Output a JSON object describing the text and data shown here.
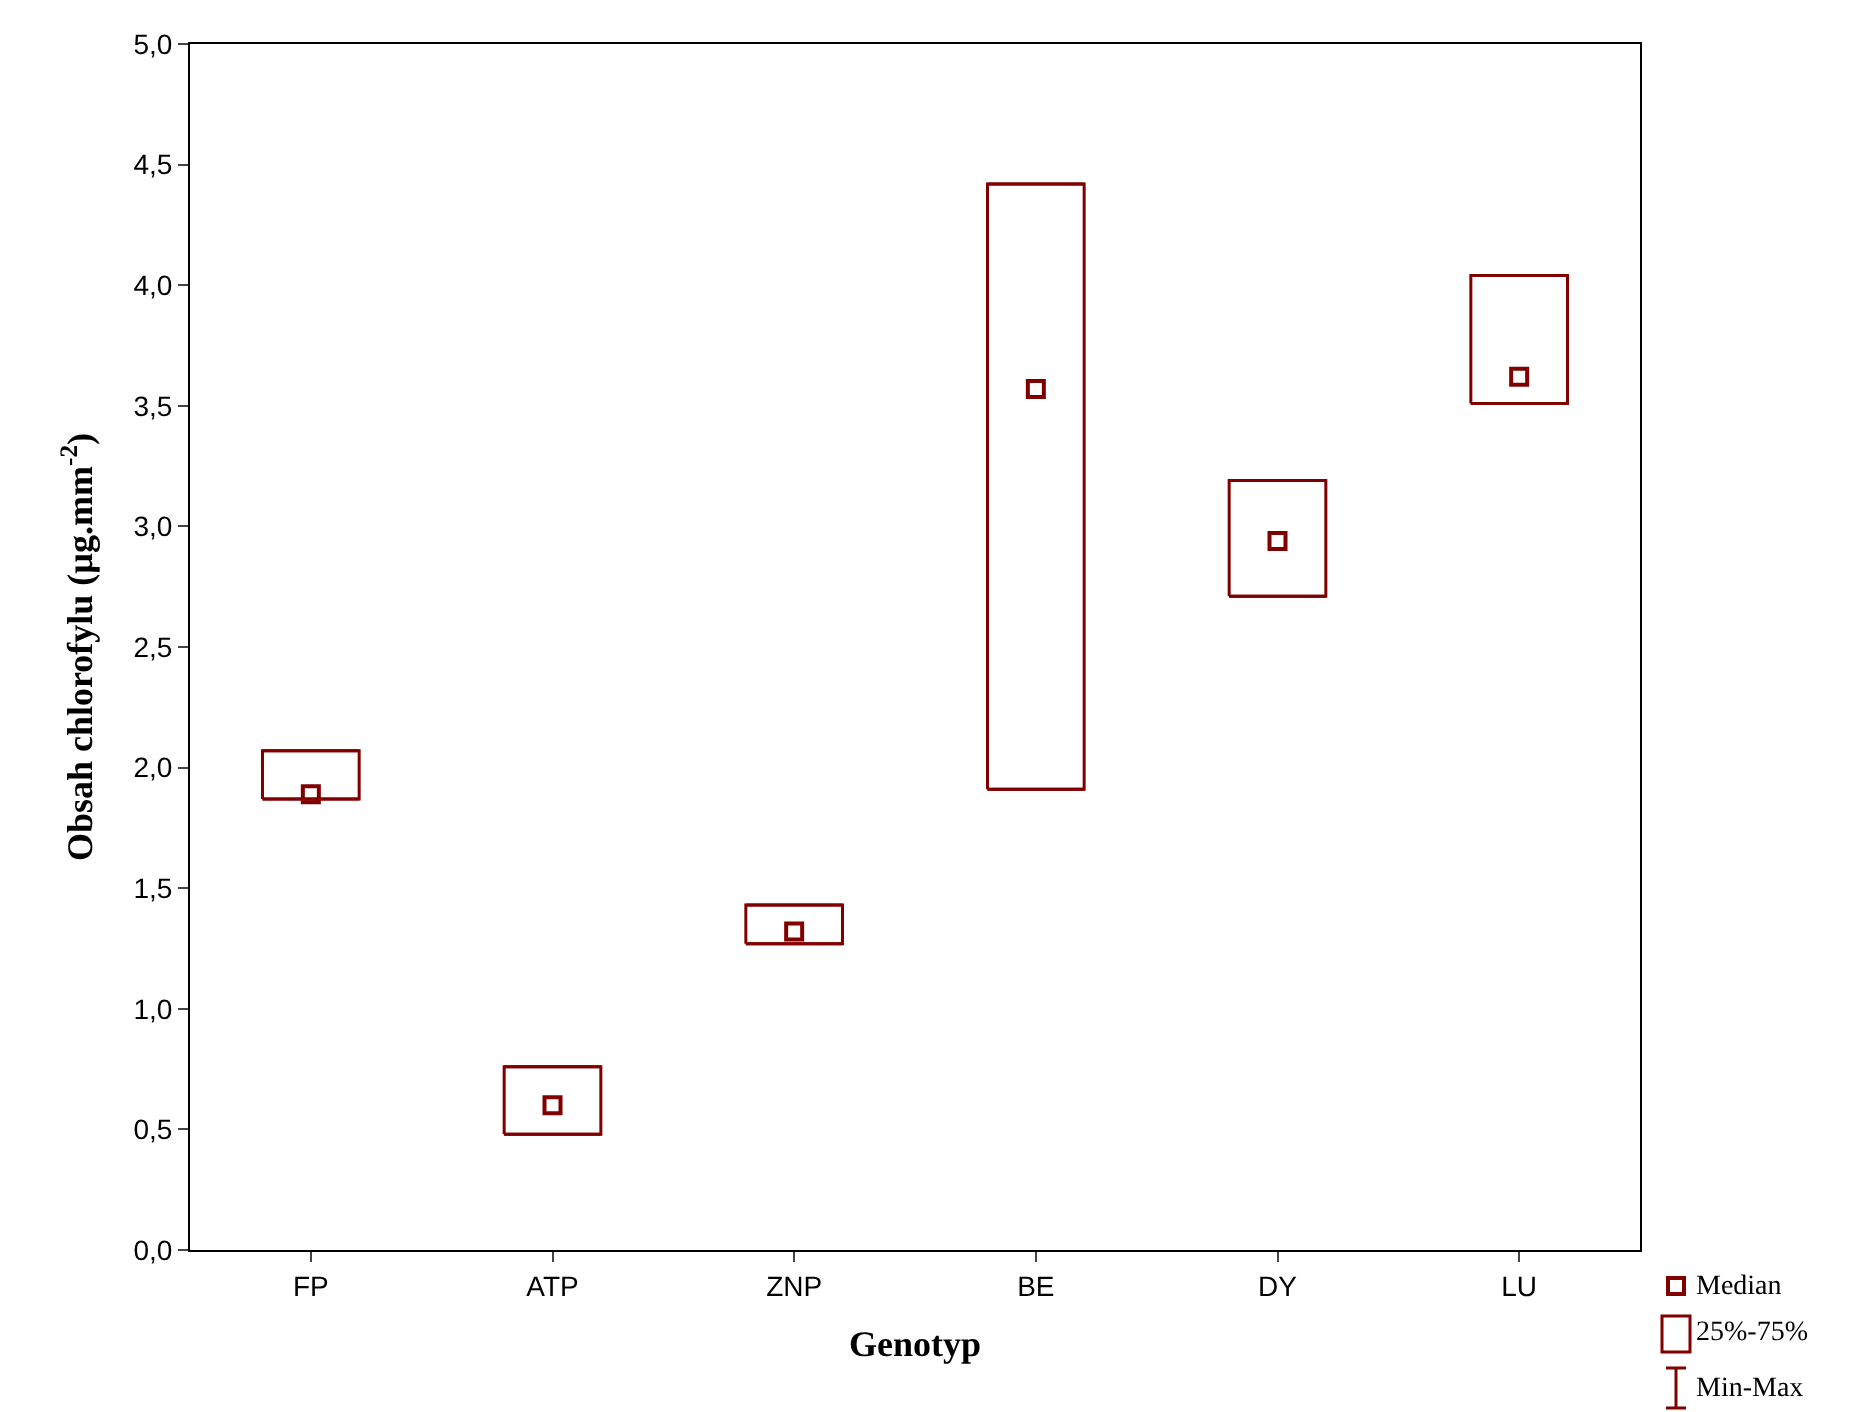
{
  "chart_data": {
    "type": "box",
    "xlabel": "Genotyp",
    "ylabel": "Obsah chlorofylu (µg.mm$^{-2}$)",
    "categories": [
      "FP",
      "ATP",
      "ZNP",
      "BE",
      "DY",
      "LU"
    ],
    "boxes": [
      {
        "low": 1.87,
        "q1": 1.87,
        "median": 1.89,
        "q3": 2.07,
        "high": 2.07
      },
      {
        "low": 0.48,
        "q1": 0.48,
        "median": 0.6,
        "q3": 0.76,
        "high": 0.76
      },
      {
        "low": 1.27,
        "q1": 1.27,
        "median": 1.32,
        "q3": 1.43,
        "high": 1.43
      },
      {
        "low": 1.91,
        "q1": 1.91,
        "median": 3.57,
        "q3": 4.42,
        "high": 4.42
      },
      {
        "low": 2.71,
        "q1": 2.71,
        "median": 2.94,
        "q3": 3.19,
        "high": 3.19
      },
      {
        "low": 3.51,
        "q1": 3.51,
        "median": 3.62,
        "q3": 4.04,
        "high": 4.04
      }
    ],
    "annotations": [
      "Median",
      "25%-75%",
      "Min-Max"
    ],
    "marker": "square",
    "ylim": [
      0,
      5
    ],
    "yticks": [
      {
        "value": 0,
        "label": "0,0"
      },
      {
        "value": 0.5,
        "label": "0,5"
      },
      {
        "value": 1,
        "label": "1,0"
      },
      {
        "value": 1.5,
        "label": "1,5"
      },
      {
        "value": 2,
        "label": "2,0"
      },
      {
        "value": 2.5,
        "label": "2,5"
      },
      {
        "value": 3,
        "label": "3,0"
      },
      {
        "value": 3.5,
        "label": "3,5"
      },
      {
        "value": 4,
        "label": "4,0"
      },
      {
        "value": 4.5,
        "label": "4,5"
      },
      {
        "value": 5,
        "label": "5,0"
      }
    ]
  }
}
